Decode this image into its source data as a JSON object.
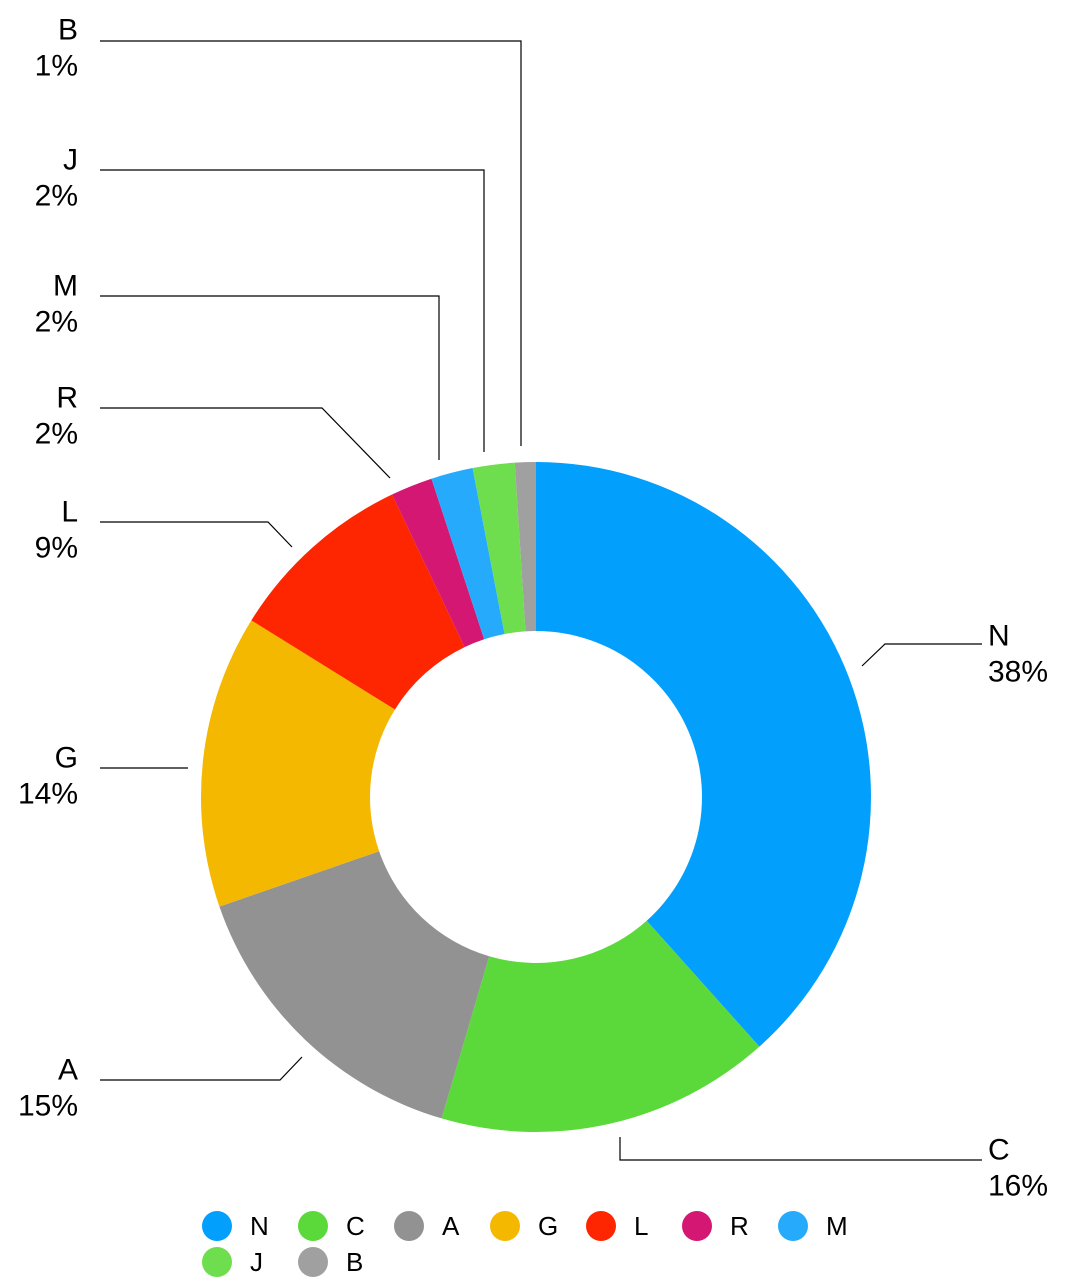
{
  "chart_data": {
    "type": "pie",
    "donut": true,
    "categories": [
      "N",
      "C",
      "A",
      "G",
      "L",
      "R",
      "M",
      "J",
      "B"
    ],
    "values": [
      38,
      16,
      15,
      14,
      9,
      2,
      2,
      2,
      1
    ],
    "labels": [
      "38%",
      "16%",
      "15%",
      "14%",
      "9%",
      "2%",
      "2%",
      "2%",
      "1%"
    ],
    "colors": [
      "#029FFD",
      "#5CD93A",
      "#929292",
      "#F5B800",
      "#FE2600",
      "#D31773",
      "#26ABFC",
      "#6FDE4E",
      "#A0A0A0"
    ],
    "legend": {
      "position": "bottom",
      "items": [
        "N",
        "C",
        "A",
        "G",
        "L",
        "R",
        "M",
        "J",
        "B"
      ]
    }
  }
}
